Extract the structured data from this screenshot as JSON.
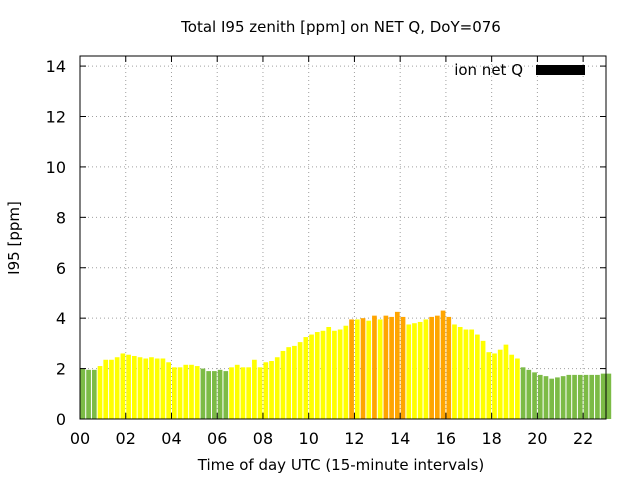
{
  "chart_data": {
    "type": "bar",
    "title": "Total I95 zenith [ppm] on NET Q, DoY=076",
    "xlabel": "Time of day UTC (15-minute intervals)",
    "ylabel": "I95 [ppm]",
    "xlim": [
      0,
      23
    ],
    "ylim": [
      0,
      14.4
    ],
    "xticks": [
      0,
      2,
      4,
      6,
      8,
      10,
      12,
      14,
      16,
      18,
      20,
      22
    ],
    "xtick_labels": [
      "00",
      "02",
      "04",
      "06",
      "08",
      "10",
      "12",
      "14",
      "16",
      "18",
      "20",
      "22"
    ],
    "yticks": [
      0,
      2,
      4,
      6,
      8,
      10,
      12,
      14
    ],
    "ytick_labels": [
      "0",
      "2",
      "4",
      "6",
      "8",
      "10",
      "12",
      "14"
    ],
    "grid": true,
    "legend": {
      "label": "ion net Q",
      "color": "#000000",
      "position": "top-right"
    },
    "interval_hours": 0.25,
    "start_hour": 0,
    "colors": {
      "green": "#7cbb46",
      "yellow": "#ffff00",
      "orange": "#ffa500"
    },
    "series": [
      {
        "name": "ion net Q",
        "values": [
          2.0,
          1.95,
          1.95,
          2.1,
          2.35,
          2.35,
          2.45,
          2.6,
          2.55,
          2.5,
          2.45,
          2.4,
          2.45,
          2.4,
          2.4,
          2.25,
          2.05,
          2.05,
          2.15,
          2.15,
          2.1,
          2.0,
          1.9,
          1.9,
          1.95,
          1.9,
          2.05,
          2.15,
          2.05,
          2.05,
          2.35,
          2.05,
          2.25,
          2.3,
          2.45,
          2.7,
          2.85,
          2.9,
          3.05,
          3.25,
          3.35,
          3.45,
          3.5,
          3.65,
          3.5,
          3.55,
          3.7,
          3.95,
          3.95,
          4.0,
          3.9,
          4.1,
          3.95,
          4.1,
          4.05,
          4.25,
          4.05,
          3.75,
          3.8,
          3.85,
          3.95,
          4.05,
          4.1,
          4.3,
          4.05,
          3.75,
          3.65,
          3.55,
          3.55,
          3.35,
          3.1,
          2.65,
          2.6,
          2.75,
          2.95,
          2.55,
          2.4,
          2.05,
          1.95,
          1.85,
          1.75,
          1.7,
          1.6,
          1.65,
          1.7,
          1.75,
          1.75,
          1.75,
          1.75,
          1.75,
          1.75,
          1.8,
          1.8
        ],
        "categories": [
          "green",
          "green",
          "green",
          "yellow",
          "yellow",
          "yellow",
          "yellow",
          "yellow",
          "yellow",
          "yellow",
          "yellow",
          "yellow",
          "yellow",
          "yellow",
          "yellow",
          "yellow",
          "yellow",
          "yellow",
          "yellow",
          "yellow",
          "yellow",
          "green",
          "green",
          "green",
          "green",
          "green",
          "yellow",
          "yellow",
          "yellow",
          "yellow",
          "yellow",
          "yellow",
          "yellow",
          "yellow",
          "yellow",
          "yellow",
          "yellow",
          "yellow",
          "yellow",
          "yellow",
          "yellow",
          "yellow",
          "yellow",
          "yellow",
          "yellow",
          "yellow",
          "yellow",
          "orange",
          "yellow",
          "orange",
          "yellow",
          "orange",
          "yellow",
          "orange",
          "orange",
          "orange",
          "orange",
          "yellow",
          "yellow",
          "yellow",
          "yellow",
          "orange",
          "orange",
          "orange",
          "orange",
          "yellow",
          "yellow",
          "yellow",
          "yellow",
          "yellow",
          "yellow",
          "yellow",
          "yellow",
          "yellow",
          "yellow",
          "yellow",
          "yellow",
          "green",
          "green",
          "green",
          "green",
          "green",
          "green",
          "green",
          "green",
          "green",
          "green",
          "green",
          "green",
          "green",
          "green",
          "green",
          "green"
        ]
      }
    ]
  }
}
